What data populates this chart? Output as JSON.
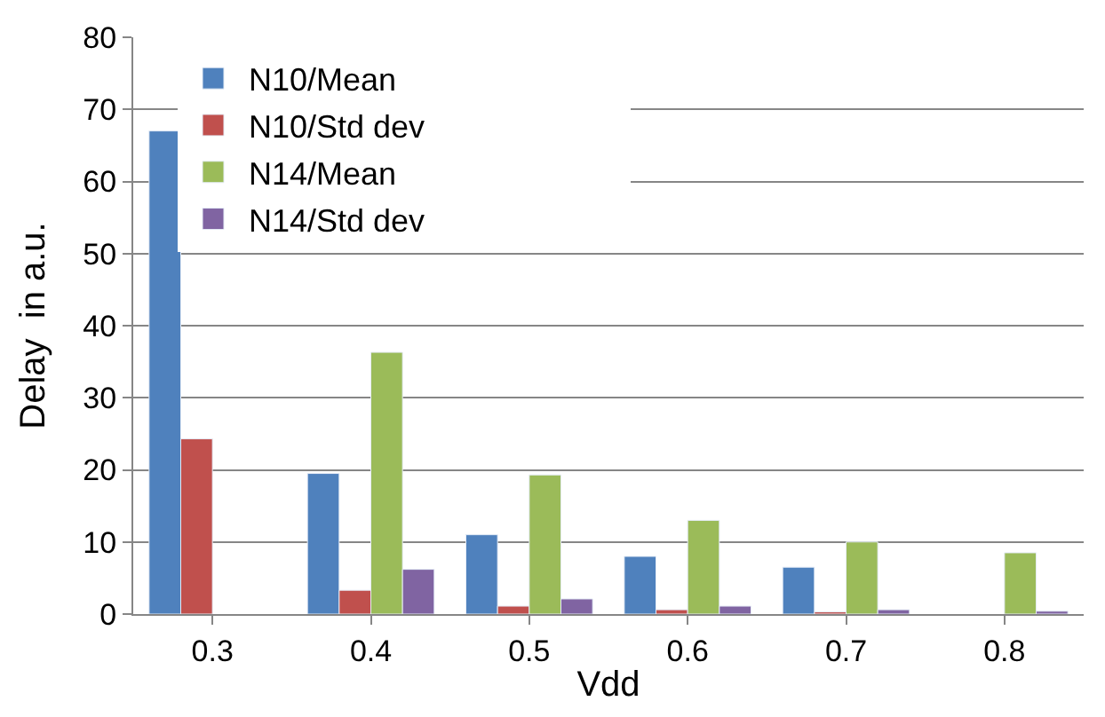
{
  "chart_data": {
    "type": "bar",
    "xlabel": "Vdd",
    "ylabel": "Delay  in a.u.",
    "categories": [
      "0.3",
      "0.4",
      "0.5",
      "0.6",
      "0.7",
      "0.8"
    ],
    "series": [
      {
        "name": "N10/Mean",
        "color": "#4f81bd",
        "values": [
          67,
          19.5,
          11,
          8,
          6.5,
          null
        ]
      },
      {
        "name": "N10/Std dev",
        "color": "#c0504d",
        "values": [
          24.3,
          3.3,
          1.1,
          0.6,
          0.3,
          null
        ]
      },
      {
        "name": "N14/Mean",
        "color": "#9bbb59",
        "values": [
          null,
          36.3,
          19.3,
          13,
          10,
          8.5
        ]
      },
      {
        "name": "N14/Std dev",
        "color": "#8064a2",
        "values": [
          null,
          6.2,
          2.1,
          1.1,
          0.6,
          0.4
        ]
      }
    ],
    "ylim": [
      0,
      80
    ],
    "yticks": [
      0,
      10,
      20,
      30,
      40,
      50,
      60,
      70,
      80
    ],
    "grid": "y",
    "legend": "top"
  }
}
